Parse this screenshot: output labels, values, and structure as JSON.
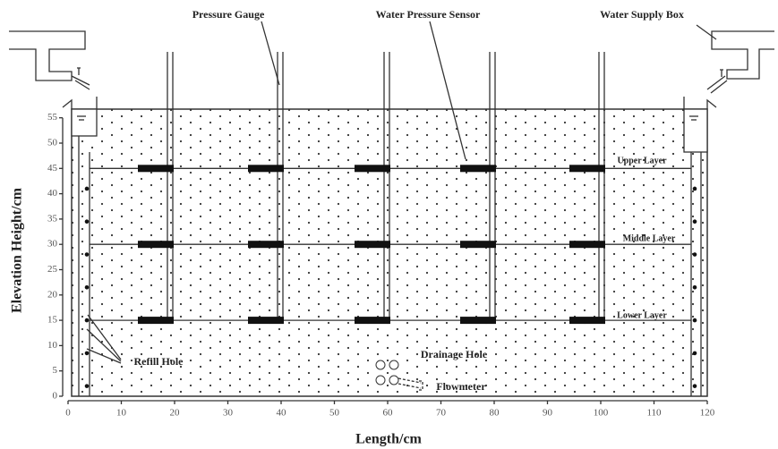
{
  "labels": {
    "pressure_gauge": "Pressure Gauge",
    "water_pressure_sensor": "Water Pressure Sensor",
    "water_supply_box": "Water Supply Box",
    "upper_layer": "Upper Layer",
    "middle_layer": "Middle Layer",
    "lower_layer": "Lower Layer",
    "refill_hole": "Refill Hole",
    "drainage_hole": "Drainage Hole",
    "flowmeter": "Flowmeter"
  },
  "axes": {
    "x_title": "Length/cm",
    "y_title": "Elevation Height/cm",
    "x_ticks": [
      0,
      10,
      20,
      30,
      40,
      50,
      60,
      70,
      80,
      90,
      100,
      110,
      120
    ],
    "y_ticks": [
      0,
      5,
      10,
      15,
      20,
      25,
      30,
      35,
      40,
      45,
      50,
      55
    ]
  }
}
